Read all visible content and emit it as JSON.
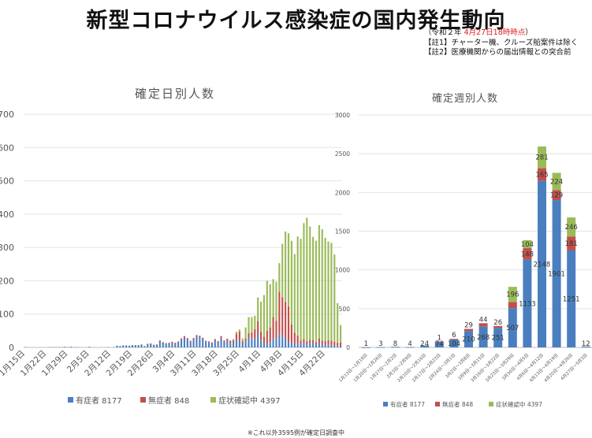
{
  "header": {
    "title": "新型コロナウイルス感染症の国内発生動向",
    "note_prefix": "（令和２年 ",
    "note_date": "4月27日18時時点",
    "note_suffix": "）",
    "note1": "【註1】チャーター機、クルーズ船案件は除く",
    "note2": "【註2】医療機関からの届出情報との突合前"
  },
  "footnote": "※これ以外3595例が確定日調査中",
  "colors": {
    "asymptomatic_onset": "#4a7fbf",
    "no_symptom": "#c0504d",
    "confirming": "#9bbb59"
  },
  "chart_data": [
    {
      "type": "bar",
      "stacked": true,
      "title": "確定日別人数",
      "xlabel": "",
      "ylabel": "",
      "ylim": [
        0,
        700
      ],
      "yticks": [
        0,
        100,
        200,
        300,
        400,
        500,
        600,
        700
      ],
      "grid": true,
      "legend_position": "bottom",
      "tick_labels": [
        "1月15日",
        "1月22日",
        "1月29日",
        "2月5日",
        "2月12日",
        "2月19日",
        "2月26日",
        "3月4日",
        "3月11日",
        "3月18日",
        "3月25日",
        "4月1日",
        "4月8日",
        "4月15日",
        "4月22日"
      ],
      "categories": [
        "1/15",
        "1/16",
        "1/17",
        "1/18",
        "1/19",
        "1/20",
        "1/21",
        "1/22",
        "1/23",
        "1/24",
        "1/25",
        "1/26",
        "1/27",
        "1/28",
        "1/29",
        "1/30",
        "1/31",
        "2/1",
        "2/2",
        "2/3",
        "2/4",
        "2/5",
        "2/6",
        "2/7",
        "2/8",
        "2/9",
        "2/10",
        "2/11",
        "2/12",
        "2/13",
        "2/14",
        "2/15",
        "2/16",
        "2/17",
        "2/18",
        "2/19",
        "2/20",
        "2/21",
        "2/22",
        "2/23",
        "2/24",
        "2/25",
        "2/26",
        "2/27",
        "2/28",
        "2/29",
        "3/1",
        "3/2",
        "3/3",
        "3/4",
        "3/5",
        "3/6",
        "3/7",
        "3/8",
        "3/9",
        "3/10",
        "3/11",
        "3/12",
        "3/13",
        "3/14",
        "3/15",
        "3/16",
        "3/17",
        "3/18",
        "3/19",
        "3/20",
        "3/21",
        "3/22",
        "3/23",
        "3/24",
        "3/25",
        "3/26",
        "3/27",
        "3/28",
        "3/29",
        "3/30",
        "3/31",
        "4/1",
        "4/2",
        "4/3",
        "4/4",
        "4/5",
        "4/6",
        "4/7",
        "4/8",
        "4/9",
        "4/10",
        "4/11",
        "4/12",
        "4/13",
        "4/14",
        "4/15",
        "4/16",
        "4/17",
        "4/18",
        "4/19",
        "4/20",
        "4/21",
        "4/22",
        "4/23",
        "4/24",
        "4/25",
        "4/26",
        "4/27"
      ],
      "series": [
        {
          "name": "有症者",
          "legend_count": "8177",
          "values": [
            1,
            0,
            0,
            0,
            0,
            0,
            0,
            0,
            1,
            1,
            1,
            1,
            1,
            2,
            1,
            2,
            1,
            1,
            0,
            0,
            0,
            2,
            0,
            0,
            0,
            0,
            0,
            1,
            0,
            1,
            5,
            4,
            6,
            6,
            5,
            7,
            6,
            7,
            8,
            4,
            10,
            12,
            6,
            8,
            20,
            15,
            10,
            12,
            14,
            10,
            15,
            22,
            30,
            25,
            15,
            22,
            33,
            30,
            26,
            18,
            15,
            12,
            20,
            15,
            28,
            17,
            20,
            14,
            12,
            25,
            20,
            13,
            18,
            28,
            30,
            25,
            38,
            22,
            12,
            10,
            15,
            28,
            24,
            42,
            35,
            26,
            16,
            14,
            12,
            11,
            10,
            15,
            9,
            12,
            14,
            8,
            12,
            10,
            8,
            8,
            8,
            5,
            4,
            5
          ]
        },
        {
          "name": "無症者",
          "legend_count": "848",
          "values": [
            0,
            0,
            0,
            0,
            0,
            0,
            0,
            0,
            0,
            0,
            0,
            0,
            0,
            0,
            0,
            0,
            0,
            0,
            0,
            0,
            0,
            0,
            0,
            0,
            0,
            0,
            0,
            0,
            0,
            0,
            0,
            0,
            0,
            0,
            0,
            0,
            1,
            0,
            1,
            0,
            1,
            0,
            2,
            1,
            1,
            1,
            3,
            2,
            3,
            4,
            3,
            5,
            4,
            3,
            5,
            6,
            4,
            5,
            3,
            2,
            3,
            3,
            5,
            4,
            6,
            4,
            6,
            6,
            10,
            16,
            28,
            6,
            9,
            15,
            15,
            30,
            40,
            25,
            20,
            40,
            45,
            63,
            56,
            125,
            116,
            110,
            107,
            55,
            32,
            25,
            11,
            10,
            10,
            11,
            8,
            7,
            15,
            10,
            11,
            14,
            12,
            12,
            10,
            10
          ]
        },
        {
          "name": "症状確認中",
          "legend_count": "4397",
          "values": [
            0,
            0,
            0,
            0,
            0,
            0,
            0,
            0,
            0,
            0,
            0,
            0,
            0,
            0,
            0,
            0,
            0,
            0,
            0,
            0,
            0,
            0,
            0,
            0,
            0,
            0,
            0,
            0,
            0,
            0,
            0,
            0,
            0,
            0,
            0,
            0,
            0,
            0,
            0,
            0,
            0,
            0,
            0,
            0,
            0,
            0,
            0,
            0,
            0,
            0,
            0,
            0,
            0,
            0,
            0,
            0,
            0,
            0,
            0,
            0,
            0,
            0,
            0,
            0,
            0,
            0,
            0,
            1,
            3,
            6,
            6,
            8,
            33,
            48,
            46,
            40,
            72,
            90,
            125,
            150,
            130,
            114,
            117,
            86,
            160,
            212,
            220,
            251,
            236,
            297,
            305,
            348,
            370,
            340,
            310,
            305,
            340,
            335,
            310,
            296,
            294,
            262,
            119,
            52
          ]
        }
      ]
    },
    {
      "type": "bar",
      "stacked": true,
      "title": "確定週別人数",
      "xlabel": "",
      "ylabel": "",
      "ylim": [
        0,
        3000
      ],
      "yticks": [
        0,
        500,
        1000,
        1500,
        2000,
        2500,
        3000
      ],
      "grid": true,
      "legend_position": "bottom",
      "categories": [
        "1月13日～1月19日",
        "1月20日～1月26日",
        "1月27日～2月2日",
        "2月3日～2月9日",
        "2月10日～2月16日",
        "2月17日～2月23日",
        "2月24日～3月1日",
        "3月2日～3月8日",
        "3月9日～3月15日",
        "3月16日～3月22日",
        "3月23日～3月29日",
        "3月30日～4月5日",
        "4月6日～4月12日",
        "4月13日～4月19日",
        "4月20日～4月26日",
        "4月27日～5月3日"
      ],
      "series": [
        {
          "name": "有症者",
          "legend_count": "8177",
          "values": [
            1,
            3,
            8,
            4,
            24,
            74,
            104,
            210,
            268,
            251,
            507,
            1133,
            2148,
            1901,
            1251,
            12
          ],
          "labels": [
            "1",
            "3",
            "8",
            "4",
            "24",
            "74",
            "104",
            "210",
            "268",
            "251",
            "507",
            "1133",
            "2148",
            "1901",
            "1251",
            "12"
          ]
        },
        {
          "name": "無症者",
          "legend_count": "848",
          "values": [
            0,
            0,
            0,
            0,
            0,
            1,
            6,
            29,
            44,
            26,
            79,
            148,
            165,
            129,
            181,
            0
          ],
          "labels": [
            "",
            "",
            "",
            "",
            "",
            "1",
            "6",
            "29",
            "44",
            "26",
            "79",
            "148",
            "165",
            "129",
            "181",
            ""
          ]
        },
        {
          "name": "症状確認中",
          "legend_count": "4397",
          "values": [
            0,
            0,
            0,
            0,
            0,
            0,
            0,
            0,
            0,
            0,
            196,
            104,
            281,
            224,
            246,
            0
          ],
          "labels": [
            "",
            "",
            "",
            "",
            "",
            "",
            "",
            "",
            "",
            "",
            "196",
            "104",
            "281",
            "224",
            "246",
            ""
          ]
        }
      ]
    }
  ]
}
